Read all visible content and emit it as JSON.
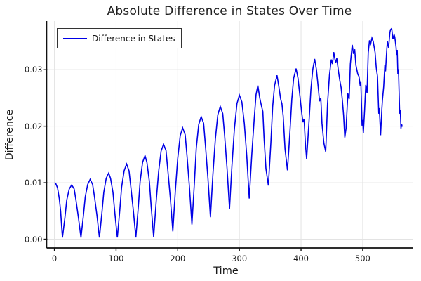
{
  "title": "Absolute Difference in States Over Time",
  "legend": {
    "label": "Difference in States"
  },
  "colors": {
    "line": "#0000e6",
    "grid": "#e3e3e3",
    "axis": "#111111",
    "text": "#1a1a1a",
    "legend_border": "#333333",
    "background": "#ffffff"
  },
  "chart_data": {
    "type": "line",
    "title": "Absolute Difference in States Over Time",
    "xlabel": "Time",
    "ylabel": "Difference",
    "xlim": [
      -12.6,
      580.9
    ],
    "ylim": [
      -0.00155,
      0.0386
    ],
    "x_ticks": [
      0,
      100,
      200,
      300,
      400,
      500
    ],
    "x_tick_labels": [
      "0",
      "100",
      "200",
      "300",
      "400",
      "500"
    ],
    "y_ticks": [
      0,
      0.01,
      0.02,
      0.03
    ],
    "y_tick_labels": [
      "0.00",
      "0.01",
      "0.02",
      "0.03"
    ],
    "grid": true,
    "legend_position": "top-left",
    "series": [
      {
        "name": "Difference in States",
        "color": "#0000e6",
        "points": [
          [
            0,
            0.01
          ],
          [
            2,
            0.0099
          ],
          [
            5,
            0.0091
          ],
          [
            8,
            0.0071
          ],
          [
            10,
            0.005
          ],
          [
            12,
            0.0018
          ],
          [
            13,
            0.0003
          ],
          [
            17,
            0.0038
          ],
          [
            20,
            0.0069
          ],
          [
            24,
            0.0089
          ],
          [
            28,
            0.0096
          ],
          [
            32,
            0.0089
          ],
          [
            35,
            0.0069
          ],
          [
            39,
            0.0038
          ],
          [
            43,
            0.0003
          ],
          [
            47,
            0.0042
          ],
          [
            50,
            0.0075
          ],
          [
            54,
            0.0097
          ],
          [
            58,
            0.0106
          ],
          [
            62,
            0.0097
          ],
          [
            65,
            0.0075
          ],
          [
            69,
            0.0042
          ],
          [
            73,
            0.0003
          ],
          [
            77,
            0.0046
          ],
          [
            80,
            0.0083
          ],
          [
            84,
            0.0108
          ],
          [
            88,
            0.0117
          ],
          [
            91,
            0.0108
          ],
          [
            95,
            0.0083
          ],
          [
            98,
            0.0046
          ],
          [
            102,
            0.0003
          ],
          [
            106,
            0.0051
          ],
          [
            109,
            0.0092
          ],
          [
            113,
            0.0121
          ],
          [
            117,
            0.0133
          ],
          [
            121,
            0.0121
          ],
          [
            124,
            0.0092
          ],
          [
            128,
            0.0051
          ],
          [
            132,
            0.0003
          ],
          [
            136,
            0.0057
          ],
          [
            139,
            0.0102
          ],
          [
            143,
            0.0136
          ],
          [
            147,
            0.0148
          ],
          [
            150,
            0.0136
          ],
          [
            154,
            0.0102
          ],
          [
            157,
            0.0057
          ],
          [
            161,
            0.0004
          ],
          [
            165,
            0.0067
          ],
          [
            169,
            0.012
          ],
          [
            173,
            0.0156
          ],
          [
            177,
            0.0168
          ],
          [
            181,
            0.0157
          ],
          [
            184,
            0.0122
          ],
          [
            188,
            0.0072
          ],
          [
            192,
            0.0014
          ],
          [
            196,
            0.0084
          ],
          [
            200,
            0.0143
          ],
          [
            204,
            0.0183
          ],
          [
            208,
            0.0197
          ],
          [
            212,
            0.0185
          ],
          [
            215,
            0.0148
          ],
          [
            219,
            0.0092
          ],
          [
            223,
            0.0026
          ],
          [
            227,
            0.0099
          ],
          [
            230,
            0.0161
          ],
          [
            234,
            0.0203
          ],
          [
            238,
            0.0217
          ],
          [
            242,
            0.0205
          ],
          [
            245,
            0.0166
          ],
          [
            249,
            0.0107
          ],
          [
            253,
            0.0039
          ],
          [
            257,
            0.0114
          ],
          [
            261,
            0.0177
          ],
          [
            265,
            0.022
          ],
          [
            269,
            0.0235
          ],
          [
            273,
            0.0222
          ],
          [
            276,
            0.0184
          ],
          [
            280,
            0.0125
          ],
          [
            284,
            0.0054
          ],
          [
            288,
            0.0131
          ],
          [
            292,
            0.0196
          ],
          [
            296,
            0.024
          ],
          [
            300,
            0.0255
          ],
          [
            304,
            0.0243
          ],
          [
            308,
            0.0205
          ],
          [
            312,
            0.0147
          ],
          [
            316,
            0.0072
          ],
          [
            320,
            0.0149
          ],
          [
            324,
            0.0213
          ],
          [
            327,
            0.0256
          ],
          [
            330,
            0.0272
          ],
          [
            333,
            0.025
          ],
          [
            336,
            0.0235
          ],
          [
            338,
            0.0226
          ],
          [
            340,
            0.018
          ],
          [
            343,
            0.0125
          ],
          [
            347,
            0.0095
          ],
          [
            351,
            0.017
          ],
          [
            354,
            0.0235
          ],
          [
            357,
            0.0272
          ],
          [
            361,
            0.029
          ],
          [
            364,
            0.027
          ],
          [
            367,
            0.0248
          ],
          [
            369,
            0.024
          ],
          [
            371,
            0.0218
          ],
          [
            374,
            0.016
          ],
          [
            378,
            0.0122
          ],
          [
            382,
            0.019
          ],
          [
            385,
            0.0248
          ],
          [
            388,
            0.0285
          ],
          [
            392,
            0.0302
          ],
          [
            395,
            0.0285
          ],
          [
            398,
            0.0255
          ],
          [
            401,
            0.0225
          ],
          [
            403,
            0.0207
          ],
          [
            405,
            0.0213
          ],
          [
            407,
            0.017
          ],
          [
            409,
            0.0142
          ],
          [
            413,
            0.021
          ],
          [
            416,
            0.0265
          ],
          [
            419,
            0.03
          ],
          [
            422,
            0.0319
          ],
          [
            425,
            0.03
          ],
          [
            428,
            0.0268
          ],
          [
            430,
            0.0244
          ],
          [
            432,
            0.025
          ],
          [
            434,
            0.0205
          ],
          [
            437,
            0.017
          ],
          [
            440,
            0.0155
          ],
          [
            443,
            0.024
          ],
          [
            446,
            0.029
          ],
          [
            449,
            0.0318
          ],
          [
            451,
            0.031
          ],
          [
            453,
            0.0331
          ],
          [
            456,
            0.0312
          ],
          [
            458,
            0.032
          ],
          [
            461,
            0.0295
          ],
          [
            463,
            0.028
          ],
          [
            465,
            0.0268
          ],
          [
            467,
            0.0246
          ],
          [
            469,
            0.0219
          ],
          [
            471,
            0.018
          ],
          [
            473,
            0.0196
          ],
          [
            476,
            0.0258
          ],
          [
            478,
            0.0248
          ],
          [
            480,
            0.031
          ],
          [
            483,
            0.0344
          ],
          [
            485,
            0.0328
          ],
          [
            487,
            0.0336
          ],
          [
            489,
            0.0308
          ],
          [
            492,
            0.0292
          ],
          [
            494,
            0.0288
          ],
          [
            496,
            0.0271
          ],
          [
            497,
            0.0278
          ],
          [
            499,
            0.0201
          ],
          [
            500,
            0.0211
          ],
          [
            501,
            0.0188
          ],
          [
            503,
            0.0228
          ],
          [
            505,
            0.0273
          ],
          [
            507,
            0.0259
          ],
          [
            509,
            0.033
          ],
          [
            511,
            0.0352
          ],
          [
            513,
            0.0346
          ],
          [
            515,
            0.0356
          ],
          [
            517,
            0.035
          ],
          [
            518,
            0.0344
          ],
          [
            520,
            0.0331
          ],
          [
            522,
            0.0304
          ],
          [
            524,
            0.0288
          ],
          [
            526,
            0.0222
          ],
          [
            527,
            0.0232
          ],
          [
            529,
            0.0184
          ],
          [
            531,
            0.023
          ],
          [
            532,
            0.0246
          ],
          [
            534,
            0.027
          ],
          [
            536,
            0.0308
          ],
          [
            537,
            0.0297
          ],
          [
            539,
            0.0335
          ],
          [
            540,
            0.035
          ],
          [
            542,
            0.0339
          ],
          [
            544,
            0.0365
          ],
          [
            545,
            0.0371
          ],
          [
            547,
            0.0373
          ],
          [
            549,
            0.0354
          ],
          [
            551,
            0.0362
          ],
          [
            552,
            0.0358
          ],
          [
            554,
            0.034
          ],
          [
            555,
            0.0325
          ],
          [
            556,
            0.0335
          ],
          [
            557,
            0.0292
          ],
          [
            558,
            0.0301
          ],
          [
            560,
            0.0222
          ],
          [
            561,
            0.0229
          ],
          [
            562,
            0.0196
          ],
          [
            563,
            0.0204
          ],
          [
            564,
            0.0199
          ]
        ]
      }
    ]
  }
}
